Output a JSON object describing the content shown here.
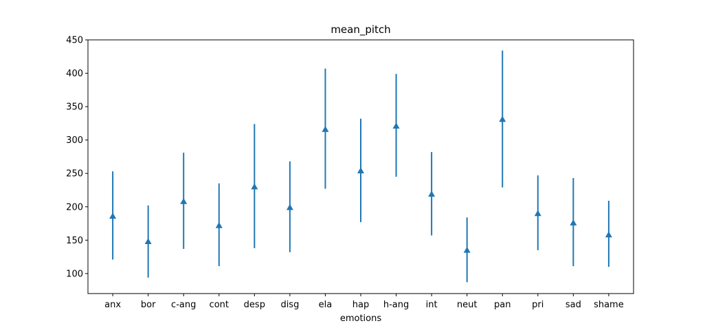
{
  "chart_data": {
    "type": "errorbar",
    "title": "mean_pitch",
    "xlabel": "emotions",
    "ylabel": "",
    "ylim": [
      70,
      450
    ],
    "yticks": [
      100,
      150,
      200,
      250,
      300,
      350,
      400,
      450
    ],
    "marker": "triangle-up",
    "color": "#1f77b4",
    "grid": false,
    "categories": [
      "anx",
      "bor",
      "c-ang",
      "cont",
      "desp",
      "disg",
      "ela",
      "hap",
      "h-ang",
      "int",
      "neut",
      "pan",
      "pri",
      "sad",
      "shame"
    ],
    "values": [
      186,
      148,
      208,
      172,
      230,
      199,
      316,
      254,
      321,
      219,
      135,
      331,
      190,
      176,
      158
    ],
    "lower": [
      121,
      94,
      137,
      111,
      138,
      132,
      227,
      177,
      245,
      157,
      87,
      229,
      135,
      111,
      110
    ],
    "upper": [
      253,
      202,
      281,
      235,
      324,
      268,
      407,
      332,
      399,
      282,
      184,
      434,
      247,
      243,
      209
    ]
  }
}
